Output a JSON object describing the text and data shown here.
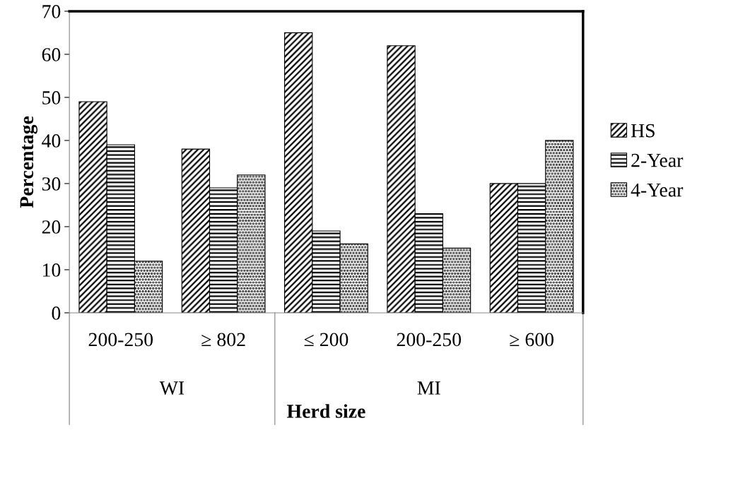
{
  "chart_data": {
    "type": "bar",
    "xlabel": "Herd size",
    "ylabel": "Percentage",
    "categories": [
      "200-250",
      "≥ 802",
      "≤ 200",
      "200-250",
      "≥ 600"
    ],
    "series": [
      {
        "name": "HS",
        "color": "#000000",
        "values": [
          49,
          38,
          65,
          62,
          30
        ]
      },
      {
        "name": "2-Year",
        "color": "#000000",
        "values": [
          39,
          29,
          19,
          23,
          30
        ]
      },
      {
        "name": "4-Year",
        "color": "#000000",
        "values": [
          12,
          32,
          16,
          15,
          40
        ]
      }
    ],
    "ylim": [
      0,
      70
    ],
    "yticks": [
      0,
      10,
      20,
      30,
      40,
      50,
      60,
      70
    ],
    "grid": false,
    "legend": "right",
    "annotations": [
      "WI",
      "MI"
    ]
  }
}
